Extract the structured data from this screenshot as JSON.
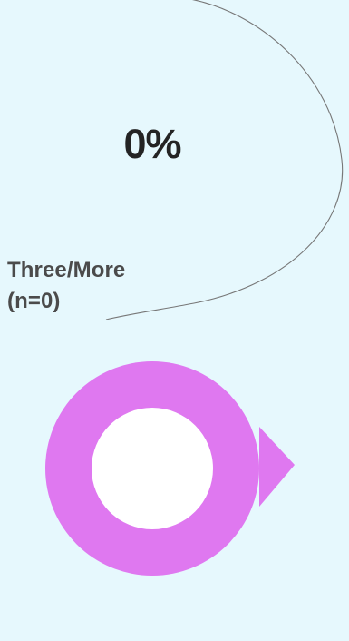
{
  "card": {
    "background_color": "#e6f8fd",
    "accent_color": "#df78f0",
    "outline_color": "#777777"
  },
  "stat": {
    "value": "0%",
    "category": "Three/More",
    "count": "(n=0)"
  }
}
